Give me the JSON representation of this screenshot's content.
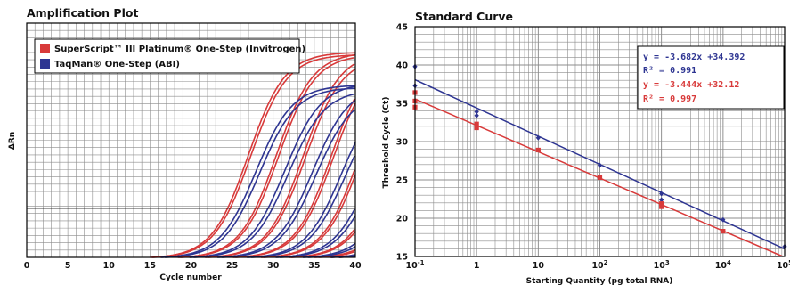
{
  "chart_data": [
    {
      "type": "line",
      "title": "Amplification Plot",
      "xlabel": "Cycle number",
      "ylabel": "ΔRn",
      "xlim": [
        0,
        40
      ],
      "x_ticks": [
        "0",
        "5",
        "10",
        "15",
        "20",
        "25",
        "30",
        "35",
        "40"
      ],
      "threshold": 0.21,
      "grid": true,
      "legend_position": "top-left",
      "legend": [
        {
          "label": "SuperScript™ III Platinum® One-Step (Invitrogen)",
          "color": "#d83a3a"
        },
        {
          "label": "TaqMan® One-Step (ABI)",
          "color": "#2e3592"
        }
      ],
      "series": [
        {
          "name": "SuperScript™ III Platinum® One-Step (Invitrogen)",
          "color": "#d83a3a",
          "curves": [
            {
              "start": 15.0,
              "plateau": 0.88
            },
            {
              "start": 15.3,
              "plateau": 0.87
            },
            {
              "start": 18.4,
              "plateau": 0.88
            },
            {
              "start": 18.7,
              "plateau": 0.87
            },
            {
              "start": 21.7,
              "plateau": 0.88
            },
            {
              "start": 22.0,
              "plateau": 0.86
            },
            {
              "start": 25.1,
              "plateau": 0.87
            },
            {
              "start": 25.4,
              "plateau": 0.86
            },
            {
              "start": 28.5,
              "plateau": 0.85
            },
            {
              "start": 28.8,
              "plateau": 0.84
            },
            {
              "start": 31.9,
              "plateau": 0.8
            },
            {
              "start": 32.2,
              "plateau": 0.78
            },
            {
              "start": 35.0,
              "plateau": 0.62
            },
            {
              "start": 35.5,
              "plateau": 0.58
            },
            {
              "start": 37.0,
              "plateau": 0.45
            },
            {
              "start": 38.0,
              "plateau": 0.4
            }
          ]
        },
        {
          "name": "TaqMan® One-Step (ABI)",
          "color": "#2e3592",
          "curves": [
            {
              "start": 16.3,
              "plateau": 0.74
            },
            {
              "start": 16.8,
              "plateau": 0.73
            },
            {
              "start": 19.8,
              "plateau": 0.75
            },
            {
              "start": 20.3,
              "plateau": 0.72
            },
            {
              "start": 23.2,
              "plateau": 0.74
            },
            {
              "start": 23.7,
              "plateau": 0.71
            },
            {
              "start": 26.8,
              "plateau": 0.73
            },
            {
              "start": 27.3,
              "plateau": 0.7
            },
            {
              "start": 30.3,
              "plateau": 0.68
            },
            {
              "start": 30.8,
              "plateau": 0.65
            },
            {
              "start": 33.6,
              "plateau": 0.55
            },
            {
              "start": 34.2,
              "plateau": 0.52
            },
            {
              "start": 37.0,
              "plateau": 0.42
            },
            {
              "start": 38.0,
              "plateau": 0.35
            }
          ]
        }
      ]
    },
    {
      "type": "scatter",
      "title": "Standard Curve",
      "xlabel": "Starting Quantity (pg total RNA)",
      "ylabel": "Threshold Cycle (Ct)",
      "x_scale": "log",
      "xlim": [
        0.1,
        100000
      ],
      "ylim": [
        15,
        45
      ],
      "x_ticks": [
        {
          "base": "10",
          "exp": "-1"
        },
        {
          "base": "1",
          "exp": ""
        },
        {
          "base": "10",
          "exp": ""
        },
        {
          "base": "10",
          "exp": "2"
        },
        {
          "base": "10",
          "exp": "3"
        },
        {
          "base": "10",
          "exp": "4"
        },
        {
          "base": "10",
          "exp": "5"
        }
      ],
      "y_ticks": [
        "15",
        "20",
        "25",
        "30",
        "35",
        "40",
        "45"
      ],
      "grid": true,
      "series": [
        {
          "color": "#2e3592",
          "marker": "diamond",
          "fit": {
            "slope": -3.682,
            "intercept": 34.392
          },
          "points": [
            {
              "x": 0.1,
              "y": 39.8
            },
            {
              "x": 0.1,
              "y": 37.3
            },
            {
              "x": 1,
              "y": 33.9
            },
            {
              "x": 1,
              "y": 33.4
            },
            {
              "x": 10,
              "y": 30.5
            },
            {
              "x": 100,
              "y": 26.9
            },
            {
              "x": 1000,
              "y": 23.2
            },
            {
              "x": 1000,
              "y": 22.4
            },
            {
              "x": 10000,
              "y": 19.8
            },
            {
              "x": 100000,
              "y": 16.3
            }
          ]
        },
        {
          "color": "#d83a3a",
          "marker": "square",
          "fit": {
            "slope": -3.444,
            "intercept": 32.12
          },
          "points": [
            {
              "x": 0.1,
              "y": 36.4
            },
            {
              "x": 0.1,
              "y": 35.3
            },
            {
              "x": 0.1,
              "y": 34.5
            },
            {
              "x": 1,
              "y": 32.3
            },
            {
              "x": 1,
              "y": 31.8
            },
            {
              "x": 10,
              "y": 28.9
            },
            {
              "x": 100,
              "y": 25.3
            },
            {
              "x": 1000,
              "y": 21.9
            },
            {
              "x": 1000,
              "y": 21.5
            },
            {
              "x": 10000,
              "y": 18.3
            }
          ]
        }
      ],
      "annotations": [
        {
          "text": "y = -3.682x +34.392",
          "color": "#2e3592"
        },
        {
          "text": "R² = 0.991",
          "color": "#2e3592"
        },
        {
          "text": "y = -3.444x +32.12",
          "color": "#d83a3a"
        },
        {
          "text": "R² = 0.997",
          "color": "#d83a3a"
        }
      ]
    }
  ]
}
